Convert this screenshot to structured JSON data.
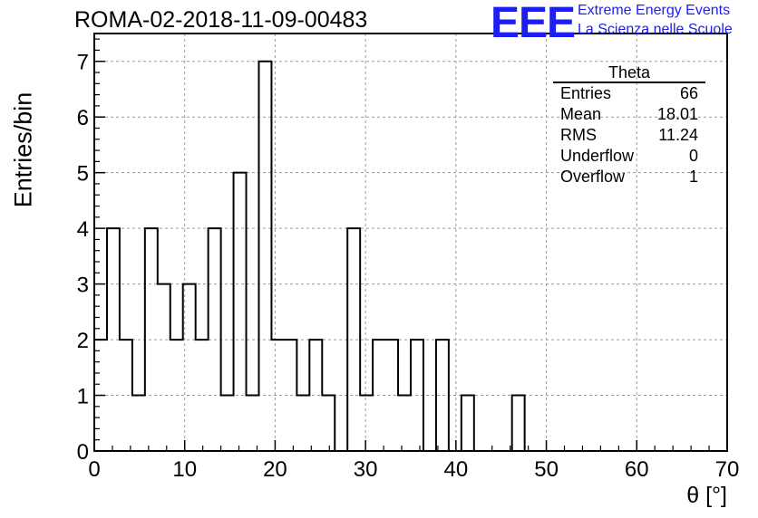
{
  "header": {
    "title": "ROMA-02-2018-11-09-00483",
    "logo_text": "EEE",
    "logo_line1": "Extreme Energy Events",
    "logo_line2": "La Scienza nelle Scuole"
  },
  "stats": {
    "title": "Theta",
    "rows": [
      {
        "label": "Entries",
        "value": "66"
      },
      {
        "label": "Mean",
        "value": "18.01"
      },
      {
        "label": "RMS",
        "value": "11.24"
      },
      {
        "label": "Underflow",
        "value": "0"
      },
      {
        "label": "Overflow",
        "value": "1"
      }
    ]
  },
  "colors": {
    "line": "#000000",
    "grid": "#9a9a9a",
    "logo": "#1e1ef2"
  },
  "chart_data": {
    "type": "histogram",
    "title": "ROMA-02-2018-11-09-00483",
    "xlabel": "θ [°]",
    "ylabel": "Entries/bin",
    "xlim": [
      0,
      70
    ],
    "ylim": [
      0,
      7.5
    ],
    "xticks": [
      0,
      10,
      20,
      30,
      40,
      50,
      60,
      70
    ],
    "yticks": [
      0,
      1,
      2,
      3,
      4,
      5,
      6,
      7
    ],
    "grid": true,
    "bin_edges": [
      0,
      1.4,
      2.8,
      4.2,
      5.6,
      7,
      8.4,
      9.8,
      11.2,
      12.6,
      14,
      15.4,
      16.8,
      18.2,
      19.6,
      21,
      22.4,
      23.8,
      25.2,
      26.6,
      28,
      29.4,
      30.8,
      32.2,
      33.6,
      35,
      36.4,
      37.8,
      39.2,
      40.6,
      42,
      43.4,
      44.8,
      46.2,
      47.6,
      49,
      50.4,
      51.8,
      53.2,
      54.6,
      56,
      57.4,
      58.8,
      60.2,
      61.6,
      63,
      64.4,
      65.8,
      67.2,
      68.6,
      70
    ],
    "counts": [
      2,
      4,
      2,
      1,
      4,
      3,
      2,
      3,
      2,
      4,
      1,
      5,
      1,
      7,
      2,
      2,
      1,
      2,
      1,
      0,
      4,
      1,
      2,
      2,
      1,
      2,
      0,
      2,
      0,
      1,
      0,
      0,
      0,
      1,
      0,
      0,
      0,
      0,
      0,
      0,
      0,
      0,
      0,
      0,
      0,
      0,
      0,
      0,
      0,
      0
    ]
  }
}
